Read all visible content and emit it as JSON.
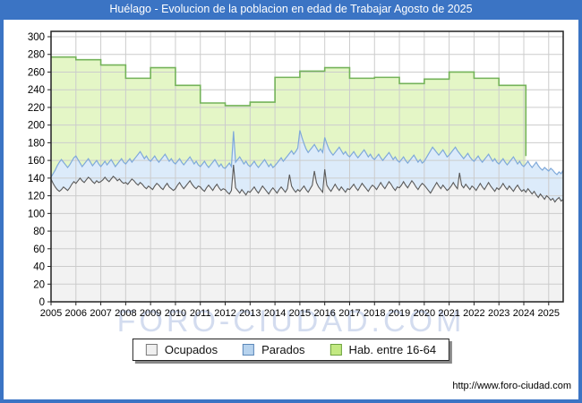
{
  "frame": {
    "title": "Huélago - Evolucion de la poblacion en edad de Trabajar Agosto de 2025",
    "accent_color": "#3B74C4"
  },
  "watermark": "FORO-CIUDAD.COM",
  "footer": {
    "url": "http://www.foro-ciudad.com"
  },
  "legend": [
    {
      "label": "Ocupados",
      "fill": "#f0f0f0",
      "border": "#7a7a7a"
    },
    {
      "label": "Parados",
      "fill": "#b7d3ee",
      "border": "#5b87b8"
    },
    {
      "label": "Hab. entre 16-64",
      "fill": "#c3e982",
      "border": "#6da23f"
    }
  ],
  "chart_data": {
    "type": "area",
    "title": "Huélago - Evolucion de la poblacion en edad de Trabajar Agosto de 2025",
    "xlabel": "",
    "ylabel": "",
    "ylim": [
      0,
      300
    ],
    "ytick_step": 20,
    "grid": true,
    "legend_position": "bottom",
    "months": 248,
    "x_start_year": 2005,
    "x_tick_labels": [
      "2005",
      "2006",
      "2007",
      "2008",
      "2009",
      "2010",
      "2011",
      "2012",
      "2013",
      "2014",
      "2015",
      "2016",
      "2017",
      "2018",
      "2019",
      "2020",
      "2021",
      "2022",
      "2023",
      "2024",
      "2025"
    ],
    "y_tick_labels": [
      "300",
      "280",
      "260",
      "240",
      "220",
      "200",
      "180",
      "160",
      "140",
      "120",
      "100",
      "80",
      "60",
      "40",
      "20",
      "0"
    ],
    "colors": {
      "plot_bg": "#ffffff",
      "gridline": "#cccccc",
      "axis_border": "#222222",
      "ocupados_line": "#5a5a5a",
      "ocupados_fill": "#f2f2f2",
      "parados_line": "#7fa9da",
      "parados_fill": "#dcebfa",
      "hab_line": "#74b35a",
      "hab_fill": "#e4f6c6"
    },
    "series": [
      {
        "name": "Ocupados",
        "values": [
          139,
          134,
          130,
          127,
          125,
          127,
          130,
          128,
          126,
          129,
          133,
          136,
          134,
          137,
          140,
          137,
          135,
          138,
          141,
          139,
          136,
          134,
          137,
          135,
          136,
          138,
          141,
          138,
          136,
          139,
          142,
          140,
          137,
          139,
          136,
          134,
          135,
          133,
          136,
          139,
          137,
          134,
          132,
          135,
          133,
          130,
          128,
          131,
          129,
          127,
          131,
          134,
          132,
          129,
          127,
          131,
          134,
          130,
          128,
          126,
          128,
          132,
          135,
          131,
          128,
          131,
          134,
          137,
          133,
          130,
          128,
          131,
          130,
          127,
          125,
          129,
          132,
          129,
          126,
          130,
          133,
          129,
          126,
          128,
          127,
          124,
          122,
          126,
          155,
          129,
          126,
          123,
          127,
          124,
          121,
          125,
          124,
          127,
          130,
          126,
          123,
          127,
          131,
          128,
          125,
          122,
          126,
          129,
          126,
          123,
          127,
          130,
          127,
          124,
          128,
          144,
          131,
          127,
          124,
          127,
          125,
          128,
          131,
          127,
          124,
          128,
          132,
          148,
          135,
          130,
          127,
          124,
          150,
          132,
          128,
          125,
          129,
          133,
          129,
          126,
          130,
          127,
          124,
          128,
          127,
          130,
          133,
          129,
          126,
          130,
          134,
          131,
          128,
          125,
          129,
          132,
          130,
          127,
          131,
          135,
          131,
          128,
          132,
          136,
          133,
          129,
          126,
          130,
          129,
          132,
          136,
          132,
          129,
          133,
          137,
          134,
          130,
          127,
          131,
          134,
          132,
          129,
          126,
          123,
          127,
          131,
          135,
          131,
          128,
          132,
          129,
          126,
          128,
          131,
          135,
          131,
          128,
          146,
          132,
          129,
          133,
          130,
          127,
          131,
          129,
          126,
          130,
          134,
          130,
          127,
          131,
          135,
          131,
          128,
          125,
          129,
          127,
          130,
          134,
          130,
          127,
          131,
          128,
          125,
          129,
          132,
          128,
          125,
          127,
          124,
          128,
          125,
          122,
          125,
          121,
          118,
          122,
          119,
          116,
          120,
          118,
          115,
          117,
          113,
          116,
          118,
          114,
          116
        ]
      },
      {
        "name": "Parados (cota superior: Ocupados + Parados)",
        "values": [
          141,
          145,
          149,
          154,
          158,
          161,
          158,
          155,
          152,
          155,
          159,
          163,
          165,
          161,
          157,
          153,
          156,
          159,
          162,
          158,
          154,
          157,
          160,
          156,
          153,
          156,
          159,
          155,
          158,
          161,
          157,
          153,
          156,
          159,
          162,
          158,
          156,
          159,
          162,
          158,
          161,
          164,
          167,
          170,
          166,
          162,
          165,
          161,
          159,
          162,
          165,
          161,
          158,
          161,
          164,
          167,
          163,
          159,
          162,
          158,
          156,
          159,
          162,
          158,
          155,
          158,
          161,
          164,
          160,
          156,
          159,
          155,
          153,
          156,
          159,
          155,
          152,
          155,
          158,
          161,
          157,
          153,
          156,
          152,
          151,
          154,
          157,
          153,
          193,
          158,
          161,
          164,
          160,
          156,
          159,
          155,
          153,
          156,
          159,
          155,
          152,
          155,
          158,
          161,
          157,
          153,
          156,
          152,
          154,
          157,
          160,
          163,
          159,
          162,
          165,
          168,
          171,
          167,
          170,
          174,
          194,
          186,
          179,
          173,
          169,
          172,
          175,
          178,
          174,
          170,
          173,
          169,
          186,
          179,
          173,
          169,
          166,
          169,
          172,
          175,
          171,
          167,
          170,
          166,
          164,
          167,
          170,
          166,
          163,
          166,
          169,
          172,
          168,
          164,
          167,
          163,
          161,
          164,
          167,
          163,
          160,
          163,
          166,
          169,
          165,
          161,
          164,
          160,
          158,
          161,
          164,
          160,
          157,
          160,
          163,
          166,
          162,
          158,
          161,
          157,
          159,
          163,
          167,
          171,
          175,
          172,
          169,
          166,
          169,
          172,
          168,
          164,
          166,
          169,
          172,
          175,
          171,
          168,
          165,
          162,
          165,
          168,
          164,
          161,
          159,
          162,
          165,
          161,
          158,
          161,
          164,
          167,
          163,
          159,
          162,
          158,
          156,
          159,
          162,
          158,
          155,
          158,
          161,
          164,
          160,
          156,
          159,
          155,
          153,
          156,
          159,
          155,
          152,
          155,
          158,
          154,
          151,
          149,
          152,
          150,
          148,
          151,
          149,
          146,
          144,
          147,
          145,
          149
        ]
      },
      {
        "name": "Hab. entre 16-64 (valor anual, escalones)",
        "step_years": [
          2005,
          2006,
          2007,
          2008,
          2009,
          2010,
          2011,
          2012,
          2013,
          2014,
          2015,
          2016,
          2017,
          2018,
          2019,
          2020,
          2021,
          2022,
          2023,
          2024
        ],
        "step_values": [
          277,
          274,
          268,
          253,
          265,
          245,
          225,
          222,
          226,
          254,
          261,
          265,
          253,
          254,
          247,
          252,
          260,
          253,
          245,
          245
        ],
        "end_month_index": 230
      }
    ]
  }
}
